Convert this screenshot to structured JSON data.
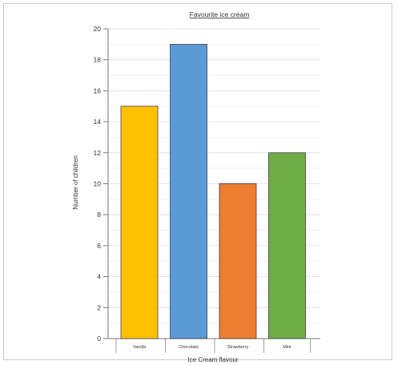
{
  "chart_data": {
    "type": "bar",
    "title": "Favourite ice cream",
    "xlabel": "Ice Cream flavour",
    "ylabel": "Number of children",
    "categories": [
      "Vanilla",
      "Chocolate",
      "Strawberry",
      "Mint"
    ],
    "values": [
      15,
      19,
      10,
      12
    ],
    "colors": [
      "#FFC000",
      "#5B9BD5",
      "#ED7D31",
      "#70AD47"
    ],
    "ylim": [
      0,
      20
    ],
    "yticks": [
      0,
      2,
      4,
      6,
      8,
      10,
      12,
      14,
      16,
      18,
      20
    ],
    "grid": true,
    "legend": "none"
  }
}
